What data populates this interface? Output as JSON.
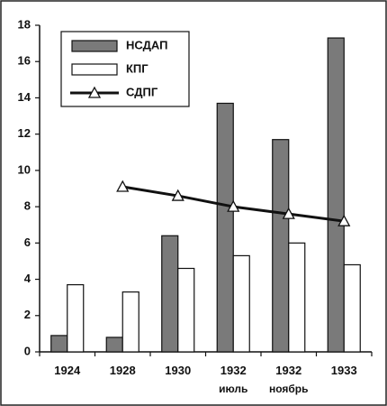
{
  "chart_data": {
    "type": "bar-line",
    "categories": [
      "1924",
      "1928",
      "1930",
      "1932\nиюль",
      "1932\nноябрь",
      "1933"
    ],
    "series": [
      {
        "name": "НСДАП",
        "type": "bar",
        "color": "#7a7a7a",
        "values": [
          0.9,
          0.8,
          6.4,
          13.7,
          11.7,
          17.3
        ]
      },
      {
        "name": "КПГ",
        "type": "bar",
        "color": "#ffffff",
        "values": [
          3.7,
          3.3,
          4.6,
          5.3,
          6.0,
          4.8
        ]
      },
      {
        "name": "СДПГ",
        "type": "line",
        "color": "#111111",
        "values": [
          null,
          9.1,
          8.6,
          8.0,
          7.6,
          7.2
        ]
      }
    ],
    "ylim": [
      0,
      18
    ],
    "yticks": [
      0,
      2,
      4,
      6,
      8,
      10,
      12,
      14,
      16,
      18
    ],
    "grid": false,
    "legend": "top-left"
  }
}
